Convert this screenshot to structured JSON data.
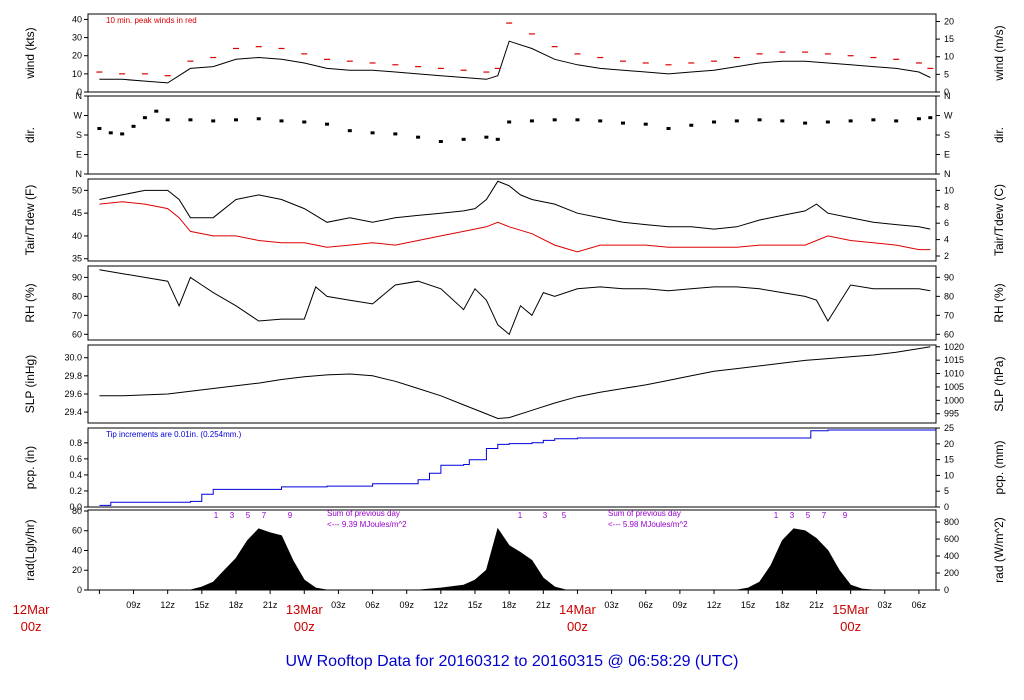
{
  "title": "UW Rooftop Data for 20160312  to  20160315 @ 06:58:29  (UTC)",
  "colors": {
    "black": "#000000",
    "red": "#dd0000",
    "blue": "#0000dd",
    "purple": "#9900cc",
    "daylabel": "#cc0000",
    "title": "#0000cc"
  },
  "chart_data": [
    {
      "type": "line",
      "name": "wind",
      "ylabel_left": "wind (kts)",
      "ylabel_right": "wind (m/s)",
      "yticks_left": [
        0,
        10,
        20,
        30,
        40
      ],
      "yticks_right": [
        0,
        5,
        10,
        15,
        20
      ],
      "ylim": [
        0,
        43
      ],
      "right_scale": 0.5144,
      "annotation": "10 min. peak winds in red",
      "series": [
        {
          "role": "mean",
          "color": "#000000",
          "x": [
            6,
            8,
            10,
            12,
            14,
            16,
            18,
            20,
            22,
            24,
            26,
            28,
            30,
            32,
            34,
            36,
            38,
            40,
            41,
            42,
            44,
            46,
            48,
            50,
            52,
            54,
            56,
            58,
            60,
            62,
            64,
            66,
            68,
            70,
            72,
            74,
            76,
            78,
            79
          ],
          "y": [
            7,
            7,
            6,
            5,
            13,
            14,
            18,
            19,
            18,
            16,
            13,
            12,
            12,
            11,
            10,
            9,
            8,
            7,
            9,
            28,
            24,
            18,
            15,
            13,
            12,
            11,
            10,
            11,
            12,
            14,
            16,
            17,
            17,
            16,
            15,
            14,
            13,
            11,
            8
          ]
        },
        {
          "role": "peak",
          "color": "#dd0000",
          "x": [
            6,
            8,
            10,
            12,
            14,
            16,
            18,
            20,
            22,
            24,
            26,
            28,
            30,
            32,
            34,
            36,
            38,
            40,
            41,
            42,
            44,
            46,
            48,
            50,
            52,
            54,
            56,
            58,
            60,
            62,
            64,
            66,
            68,
            70,
            72,
            74,
            76,
            78,
            79
          ],
          "y": [
            11,
            10,
            10,
            9,
            17,
            19,
            24,
            25,
            24,
            21,
            18,
            17,
            16,
            15,
            14,
            13,
            12,
            11,
            13,
            38,
            32,
            25,
            21,
            19,
            17,
            16,
            15,
            16,
            17,
            19,
            21,
            22,
            22,
            21,
            20,
            19,
            18,
            16,
            13
          ]
        }
      ]
    },
    {
      "type": "scatter",
      "name": "dir",
      "ylabel_left": "dir.",
      "ylabel_right": "dir.",
      "yticks_left": [
        "N",
        "E",
        "S",
        "W",
        "N"
      ],
      "yticks_right": [
        "N",
        "E",
        "S",
        "W",
        "N"
      ],
      "ylim": [
        0,
        360
      ],
      "series": [
        {
          "color": "#000000",
          "x": [
            6,
            7,
            8,
            9,
            10,
            11,
            12,
            14,
            16,
            18,
            20,
            22,
            24,
            26,
            28,
            30,
            32,
            34,
            36,
            38,
            40,
            41,
            42,
            44,
            46,
            48,
            50,
            52,
            54,
            56,
            58,
            60,
            62,
            64,
            66,
            68,
            70,
            72,
            74,
            76,
            78,
            79
          ],
          "y": [
            210,
            190,
            185,
            220,
            260,
            290,
            250,
            250,
            245,
            250,
            255,
            245,
            240,
            230,
            200,
            190,
            185,
            170,
            150,
            160,
            170,
            160,
            240,
            245,
            250,
            250,
            245,
            235,
            230,
            210,
            225,
            240,
            245,
            250,
            245,
            235,
            240,
            245,
            250,
            245,
            255,
            260
          ]
        }
      ]
    },
    {
      "type": "line",
      "name": "temperature",
      "ylabel_left": "Tair/Tdew (F)",
      "ylabel_right": "Tair/Tdew (C)",
      "yticks_left": [
        35,
        40,
        45,
        50
      ],
      "yticks_right": [
        2,
        4,
        6,
        8,
        10
      ],
      "ylim": [
        34.5,
        52.5
      ],
      "series": [
        {
          "role": "Tair",
          "color": "#000000",
          "x": [
            6,
            8,
            10,
            12,
            13,
            14,
            16,
            18,
            20,
            22,
            24,
            26,
            28,
            30,
            32,
            34,
            36,
            38,
            39,
            40,
            41,
            42,
            43,
            44,
            46,
            48,
            50,
            52,
            54,
            56,
            58,
            60,
            62,
            64,
            66,
            68,
            69,
            70,
            72,
            74,
            76,
            78,
            79
          ],
          "y": [
            48,
            49,
            50,
            50,
            48,
            44,
            44,
            48,
            49,
            48,
            46,
            43,
            44,
            43,
            44,
            44.5,
            45,
            45.5,
            46,
            48,
            52,
            51,
            49,
            48,
            47,
            45,
            44,
            43,
            42.5,
            42,
            42,
            41.5,
            42,
            43.5,
            44.5,
            45.5,
            47,
            45,
            44,
            43,
            42.5,
            42,
            41.5
          ]
        },
        {
          "role": "Tdew",
          "color": "#dd0000",
          "x": [
            6,
            8,
            10,
            12,
            13,
            14,
            16,
            18,
            20,
            22,
            24,
            26,
            28,
            30,
            32,
            34,
            36,
            38,
            40,
            41,
            42,
            44,
            46,
            48,
            50,
            52,
            54,
            56,
            58,
            60,
            62,
            64,
            66,
            68,
            70,
            72,
            74,
            76,
            78,
            79
          ],
          "y": [
            47,
            47.5,
            47,
            46,
            44,
            41,
            40,
            40,
            39,
            38.5,
            38.5,
            37.5,
            38,
            38.5,
            38,
            39,
            40,
            41,
            42,
            43,
            42,
            40.5,
            38,
            36.5,
            38,
            38,
            38,
            37.5,
            37.5,
            37.5,
            37.5,
            38,
            38,
            38,
            40,
            39,
            38.5,
            38,
            37,
            37
          ]
        }
      ]
    },
    {
      "type": "line",
      "name": "rh",
      "ylabel_left": "RH (%)",
      "ylabel_right": "RH (%)",
      "yticks_left": [
        60,
        70,
        80,
        90
      ],
      "yticks_right": [
        60,
        70,
        80,
        90
      ],
      "ylim": [
        57,
        96
      ],
      "series": [
        {
          "color": "#000000",
          "x": [
            6,
            8,
            10,
            12,
            13,
            14,
            15,
            16,
            18,
            20,
            22,
            24,
            25,
            26,
            28,
            30,
            32,
            34,
            36,
            38,
            39,
            40,
            41,
            42,
            43,
            44,
            45,
            46,
            48,
            50,
            52,
            54,
            56,
            58,
            60,
            62,
            64,
            66,
            68,
            69,
            70,
            72,
            74,
            76,
            78,
            79
          ],
          "y": [
            94,
            92,
            90,
            88,
            75,
            90,
            86,
            82,
            75,
            67,
            68,
            68,
            85,
            80,
            78,
            76,
            86,
            88,
            84,
            73,
            84,
            78,
            65,
            60,
            75,
            70,
            82,
            80,
            84,
            85,
            84,
            84,
            83,
            84,
            85,
            85,
            84,
            82,
            80,
            78,
            67,
            86,
            84,
            84,
            84,
            83
          ]
        }
      ]
    },
    {
      "type": "line",
      "name": "slp",
      "ylabel_left": "SLP (inHg)",
      "ylabel_right": "SLP (hPa)",
      "yticks_left": [
        29.4,
        29.6,
        29.8,
        30.0
      ],
      "yticks_right": [
        995,
        1000,
        1005,
        1010,
        1015,
        1020
      ],
      "yticks_left_labels": [
        "29.4",
        "29.6",
        "29.8",
        "30.0"
      ],
      "ylim": [
        29.28,
        30.14
      ],
      "right_scale": 33.8639,
      "series": [
        {
          "color": "#000000",
          "x": [
            6,
            8,
            10,
            12,
            14,
            16,
            18,
            20,
            22,
            24,
            26,
            28,
            30,
            32,
            34,
            36,
            38,
            40,
            41,
            42,
            44,
            46,
            48,
            50,
            52,
            54,
            56,
            58,
            60,
            62,
            64,
            66,
            68,
            70,
            72,
            74,
            76,
            78,
            79
          ],
          "y": [
            29.58,
            29.58,
            29.59,
            29.6,
            29.63,
            29.66,
            29.69,
            29.72,
            29.76,
            29.79,
            29.81,
            29.82,
            29.8,
            29.74,
            29.66,
            29.58,
            29.48,
            29.38,
            29.33,
            29.34,
            29.42,
            29.5,
            29.57,
            29.62,
            29.66,
            29.7,
            29.75,
            29.8,
            29.85,
            29.88,
            29.91,
            29.94,
            29.97,
            29.99,
            30.01,
            30.03,
            30.06,
            30.1,
            30.12
          ]
        }
      ]
    },
    {
      "type": "line",
      "name": "pcp",
      "ylabel_left": "pcp. (in)",
      "ylabel_right": "pcp. (mm)",
      "yticks_left": [
        0.0,
        0.2,
        0.4,
        0.6,
        0.8
      ],
      "yticks_right": [
        0,
        5,
        10,
        15,
        20,
        25
      ],
      "yticks_left_labels": [
        "0.0",
        "0.2",
        "0.4",
        "0.6",
        "0.8"
      ],
      "ylim": [
        0,
        0.985
      ],
      "right_scale": 25.4,
      "annotation": "Tip increments are 0.01in. (0.254mm.)",
      "series": [
        {
          "color": "#0000dd",
          "x": [
            6,
            7,
            14,
            15,
            16,
            22,
            26,
            30,
            34,
            35,
            36,
            38,
            38.5,
            40,
            41,
            42,
            44,
            45,
            46,
            48,
            50,
            52,
            54,
            56,
            58,
            60,
            62,
            66,
            68,
            68.5,
            70,
            72,
            74,
            76,
            78,
            79
          ],
          "y": [
            0.02,
            0.06,
            0.07,
            0.16,
            0.22,
            0.25,
            0.26,
            0.29,
            0.34,
            0.42,
            0.52,
            0.53,
            0.59,
            0.73,
            0.78,
            0.79,
            0.8,
            0.83,
            0.85,
            0.86,
            0.86,
            0.86,
            0.86,
            0.86,
            0.86,
            0.86,
            0.86,
            0.86,
            0.86,
            0.95,
            0.96,
            0.96,
            0.96,
            0.96,
            0.96,
            0.96
          ]
        }
      ]
    },
    {
      "type": "area",
      "name": "radiation",
      "ylabel_left": "rad(Lgly/hr)",
      "ylabel_right": "rad (W/m^2)",
      "yticks_left": [
        0,
        20,
        40,
        60,
        80
      ],
      "yticks_right": [
        0,
        200,
        400,
        600,
        800
      ],
      "ylim": [
        0,
        81
      ],
      "right_scale": 11.63,
      "annotations": [
        {
          "text": "Sum of previous day",
          "day": 1
        },
        {
          "text": "<--- 9.39 MJoules/m^2",
          "day": 1
        },
        {
          "text": "Sum of previous day",
          "day": 2
        },
        {
          "text": "<--- 5.98 MJoules/m^2",
          "day": 2
        }
      ],
      "hour_marks": [
        "1",
        "3",
        "5",
        "7",
        "9",
        "1",
        "3",
        "5",
        "1",
        "3",
        "5",
        "7",
        "9"
      ],
      "series": [
        {
          "color": "#000000",
          "x": [
            14,
            15,
            16,
            17,
            18,
            19,
            20,
            21,
            22,
            23,
            24,
            25,
            26,
            30,
            31,
            34,
            36,
            38,
            39,
            40,
            41,
            42,
            43,
            44,
            45,
            46,
            47,
            48,
            49,
            54,
            62,
            63,
            64,
            65,
            66,
            67,
            68,
            69,
            70,
            71,
            72,
            73,
            74
          ],
          "y": [
            0,
            3,
            8,
            20,
            32,
            50,
            62,
            58,
            55,
            30,
            10,
            2,
            0,
            0,
            0,
            0,
            2,
            5,
            10,
            20,
            62,
            45,
            38,
            30,
            12,
            3,
            0,
            0,
            0,
            0,
            0,
            2,
            8,
            25,
            50,
            62,
            60,
            52,
            40,
            20,
            5,
            1,
            0
          ]
        }
      ]
    }
  ],
  "x_axis": {
    "hour_labels": [
      "09z",
      "12z",
      "15z",
      "18z",
      "21z",
      "03z",
      "06z",
      "09z",
      "12z",
      "15z",
      "18z",
      "21z",
      "03z",
      "06z",
      "09z",
      "12z",
      "15z",
      "18z",
      "21z",
      "03z",
      "06z"
    ],
    "hour_positions": [
      9,
      12,
      15,
      18,
      21,
      27,
      30,
      33,
      36,
      39,
      42,
      45,
      51,
      54,
      57,
      60,
      63,
      66,
      69,
      75,
      78
    ],
    "day_labels": [
      {
        "date": "12Mar",
        "time": "00z",
        "at": 0
      },
      {
        "date": "13Mar",
        "time": "00z",
        "at": 24
      },
      {
        "date": "14Mar",
        "time": "00z",
        "at": 48
      },
      {
        "date": "15Mar",
        "time": "00z",
        "at": 72
      }
    ]
  }
}
